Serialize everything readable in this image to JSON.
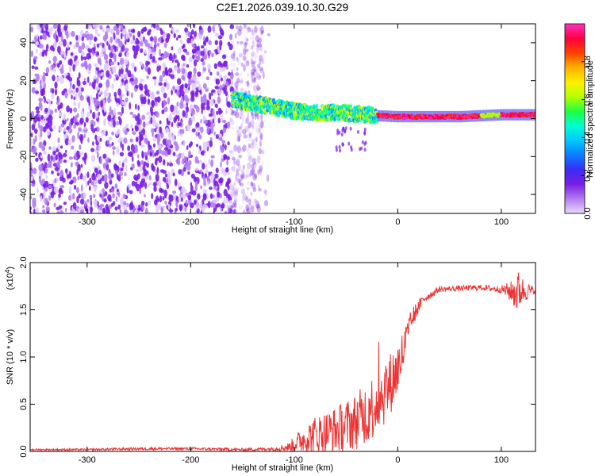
{
  "chart_data": [
    {
      "type": "heatmap",
      "title": "C2E1.2026.039.10.30.G29",
      "xlabel": "Height of straight line (km)",
      "ylabel": "Frequency (Hz)",
      "xlim": [
        -355,
        133
      ],
      "ylim": [
        -50,
        50
      ],
      "xticks": [
        -300,
        -200,
        -100,
        0,
        100
      ],
      "xtick_labels": [
        "-300",
        "-200",
        "-100",
        "0",
        "100"
      ],
      "yticks": [
        -40,
        -20,
        0,
        20,
        40
      ],
      "ytick_labels": [
        "-40",
        "-20",
        "0",
        "20",
        "40"
      ],
      "colorbar": {
        "label": "Normalized spectral amplitude",
        "range": [
          0,
          1
        ],
        "ticks": [
          0.0,
          0.2,
          0.4,
          0.6,
          0.8
        ],
        "tick_labels": [
          "0.0",
          "0.2",
          "0.4",
          "0.6",
          "0.8"
        ],
        "colors": [
          "#e8d8ff",
          "#b27cf0",
          "#7a1fe6",
          "#3a2cf5",
          "#0b7cff",
          "#00c8ff",
          "#00ffd0",
          "#20ff40",
          "#b4ff00",
          "#fff000",
          "#ffb000",
          "#ff4000",
          "#ff0040",
          "#ff30c0"
        ]
      },
      "signal_track": {
        "description_points_x": [
          -160,
          -140,
          -120,
          -100,
          -80,
          -60,
          -40,
          -20,
          0,
          20,
          40,
          60,
          80,
          100,
          130
        ],
        "center_freq_hz": [
          10,
          8,
          6,
          4,
          3,
          3,
          2.5,
          1.5,
          1,
          1,
          1,
          1,
          1.5,
          2,
          2
        ]
      }
    },
    {
      "type": "line",
      "xlabel": "Height of straight line (km)",
      "ylabel": "SNR (10 * v/v)",
      "y_exponent_label": "(x10",
      "y_exponent_power": "4",
      "y_exponent_close": ")",
      "xlim": [
        -355,
        133
      ],
      "ylim": [
        0,
        2.0
      ],
      "xticks": [
        -300,
        -200,
        -100,
        0,
        100
      ],
      "xtick_labels": [
        "-300",
        "-200",
        "-100",
        "0",
        "100"
      ],
      "yticks": [
        0.0,
        0.5,
        1.0,
        1.5,
        2.0
      ],
      "ytick_labels": [
        "0.0",
        "0.5",
        "1.0",
        "1.5",
        "2.0"
      ],
      "color": "#ee3333",
      "envelope": {
        "x": [
          -355,
          -300,
          -250,
          -200,
          -150,
          -120,
          -105,
          -95,
          -80,
          -60,
          -40,
          -25,
          -10,
          0,
          10,
          15,
          25,
          40,
          60,
          80,
          100,
          110,
          115,
          120,
          133
        ],
        "mean": [
          0.02,
          0.02,
          0.03,
          0.03,
          0.02,
          0.03,
          0.05,
          0.12,
          0.2,
          0.25,
          0.35,
          0.5,
          0.7,
          0.9,
          1.25,
          1.45,
          1.62,
          1.72,
          1.73,
          1.74,
          1.72,
          1.7,
          1.72,
          1.72,
          1.7
        ],
        "noise": [
          0.01,
          0.01,
          0.015,
          0.015,
          0.015,
          0.02,
          0.05,
          0.12,
          0.2,
          0.25,
          0.3,
          0.35,
          0.35,
          0.3,
          0.2,
          0.1,
          0.05,
          0.03,
          0.03,
          0.03,
          0.04,
          0.12,
          0.25,
          0.15,
          0.02
        ]
      }
    }
  ]
}
